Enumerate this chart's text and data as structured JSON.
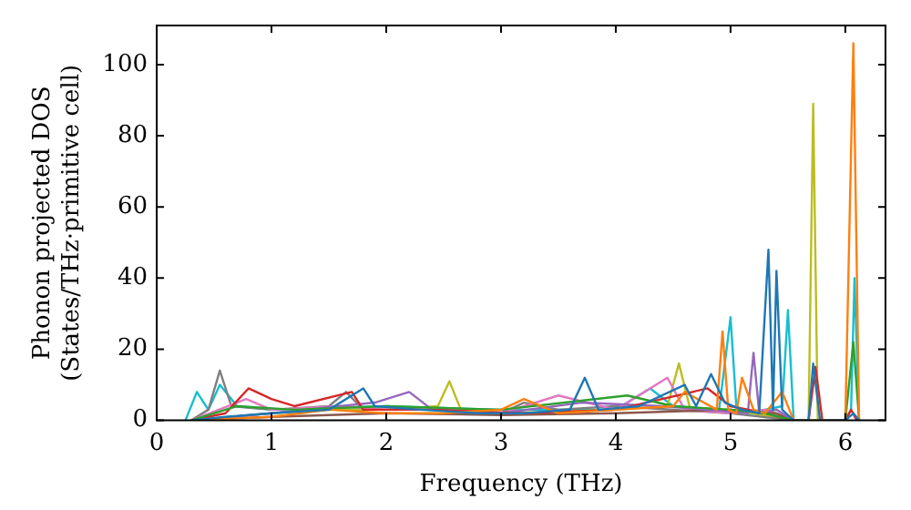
{
  "chart_data": {
    "type": "line",
    "xlabel": "Frequency (THz)",
    "ylabel": "Phonon projected DOS\n(States/THz·primitive cell)",
    "xlim": [
      0,
      6.35
    ],
    "xticks": [
      0,
      1,
      2,
      3,
      4,
      5,
      6
    ],
    "ylim": [
      0,
      111
    ],
    "yticks": [
      0,
      20,
      40,
      60,
      80,
      100
    ],
    "grid": false,
    "legend": false,
    "marker": "none",
    "line_style": "solid",
    "series": [
      {
        "color": "#1f77b4",
        "x": [
          0.3,
          0.6,
          1.0,
          1.5,
          1.8,
          1.9,
          2.3,
          2.8,
          3.2,
          3.6,
          3.73,
          3.85,
          4.2,
          4.6,
          4.7,
          4.83,
          4.95,
          5.1,
          5.25,
          5.33,
          5.37,
          5.4,
          5.45,
          5.55,
          5.68,
          5.72,
          5.78,
          6.0,
          6.07,
          6.12
        ],
        "values": [
          0,
          1,
          2,
          3,
          9,
          4,
          3,
          2,
          2,
          3,
          12,
          3,
          4,
          10,
          4,
          13,
          5,
          3,
          2,
          48,
          3,
          42,
          3,
          0,
          0,
          16,
          0,
          0,
          2,
          0
        ]
      },
      {
        "color": "#ff7f0e",
        "x": [
          0.3,
          1.0,
          1.5,
          2.0,
          2.5,
          3.0,
          3.2,
          3.5,
          4.0,
          4.5,
          4.6,
          4.88,
          4.93,
          4.98,
          5.05,
          5.1,
          5.2,
          5.3,
          5.45,
          5.55,
          5.68,
          5.78,
          6.0,
          6.07,
          6.12
        ],
        "values": [
          0,
          1,
          3,
          2,
          2,
          3,
          6,
          2,
          3,
          4,
          8,
          3,
          25,
          3,
          2,
          12,
          3,
          2,
          8,
          0,
          0,
          0,
          0,
          106,
          0
        ]
      },
      {
        "color": "#2ca02c",
        "x": [
          0.3,
          0.7,
          1.2,
          2.0,
          3.0,
          4.1,
          4.5,
          5.0,
          5.3,
          5.55,
          6.0,
          6.07,
          6.12
        ],
        "values": [
          0,
          4,
          3,
          4,
          3,
          7,
          4,
          3,
          2,
          0,
          0,
          22,
          0
        ]
      },
      {
        "color": "#d62728",
        "x": [
          0.3,
          0.6,
          0.8,
          1.0,
          1.2,
          1.7,
          1.8,
          2.4,
          3.2,
          4.0,
          4.8,
          5.0,
          5.3,
          5.55,
          5.68,
          5.74,
          5.8,
          6.0,
          6.05,
          6.1
        ],
        "values": [
          0,
          2,
          9,
          6,
          4,
          8,
          3,
          3,
          2,
          3,
          9,
          4,
          2,
          0,
          0,
          15,
          0,
          0,
          3,
          0
        ]
      },
      {
        "color": "#9467bd",
        "x": [
          0.3,
          1.0,
          1.9,
          2.2,
          2.4,
          3.0,
          3.7,
          4.4,
          4.8,
          5.15,
          5.2,
          5.25,
          5.4,
          5.55
        ],
        "values": [
          0,
          2,
          5,
          8,
          3,
          2,
          5,
          4,
          3,
          2,
          19,
          2,
          3,
          0
        ]
      },
      {
        "color": "#8c564b",
        "x": [
          0.3,
          1.0,
          2.0,
          3.0,
          4.0,
          5.0,
          5.4,
          5.55
        ],
        "values": [
          0,
          1,
          2,
          1.5,
          2,
          3,
          2,
          0
        ]
      },
      {
        "color": "#e377c2",
        "x": [
          0.3,
          0.78,
          1.0,
          1.6,
          2.0,
          2.5,
          3.0,
          3.5,
          4.0,
          4.45,
          4.6,
          5.0,
          5.3,
          5.55
        ],
        "values": [
          0,
          6,
          3,
          4,
          3,
          3,
          2,
          7,
          3,
          12,
          3,
          2,
          3,
          0
        ]
      },
      {
        "color": "#7f7f7f",
        "x": [
          0.3,
          0.45,
          0.55,
          0.65,
          1.0,
          1.5,
          1.65,
          1.8,
          2.5,
          3.0,
          3.2,
          3.5,
          4.0,
          5.0,
          5.55
        ],
        "values": [
          0,
          3,
          14,
          4,
          3,
          4,
          8,
          3,
          3,
          2,
          5,
          3,
          4,
          2,
          0
        ]
      },
      {
        "color": "#bcbd22",
        "x": [
          0.3,
          1.0,
          1.5,
          2.0,
          2.45,
          2.55,
          2.65,
          3.0,
          4.0,
          4.45,
          4.55,
          4.65,
          5.0,
          5.55,
          5.68,
          5.72,
          5.76
        ],
        "values": [
          0,
          2,
          3,
          3,
          4,
          11,
          3,
          2,
          3,
          4,
          16,
          3,
          3,
          0,
          0,
          89,
          0
        ]
      },
      {
        "color": "#17becf",
        "x": [
          0.25,
          0.35,
          0.45,
          0.55,
          0.7,
          1.0,
          2.0,
          3.0,
          4.0,
          4.3,
          4.5,
          4.9,
          5.0,
          5.05,
          5.15,
          5.3,
          5.45,
          5.5,
          5.55,
          5.68,
          6.0,
          6.05,
          6.08,
          6.12
        ],
        "values": [
          0,
          8,
          3,
          10,
          4,
          3,
          4,
          3,
          3,
          9,
          4,
          3,
          29,
          4,
          2,
          3,
          4,
          31,
          0,
          0,
          0,
          3,
          40,
          0
        ]
      }
    ]
  }
}
